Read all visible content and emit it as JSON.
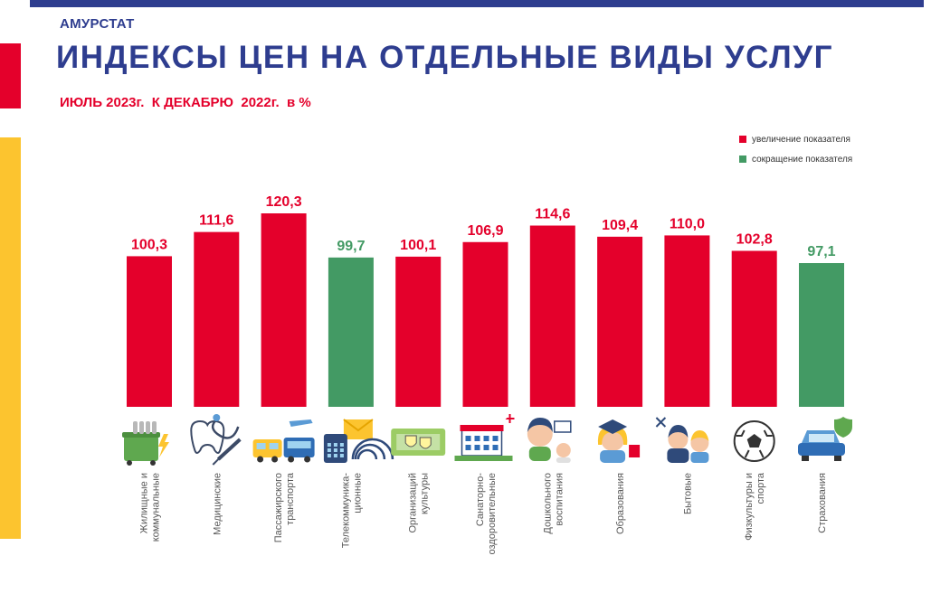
{
  "header": {
    "brand": "АМУРСТАТ",
    "title": "ИНДЕКСЫ ЦЕН НА ОТДЕЛЬНЫЕ ВИДЫ УСЛУГ",
    "subtitle": "ИЮЛЬ 2023г.  К ДЕКАБРЮ  2022г.  в %"
  },
  "legend": {
    "increase": "увеличение показателя",
    "decrease": "сокращение показателя"
  },
  "colors": {
    "increase": "#e4002b",
    "decrease": "#439a64",
    "title": "#2e3d8f"
  },
  "chart_data": {
    "type": "bar",
    "categories": [
      "Жилищные и коммунальные",
      "Медицинские",
      "Пассажирского транспорта",
      "Телекоммуника-ционные",
      "Организаций культуры",
      "Санаторно-оздоровительные",
      "Дошкольного воспитания",
      "Образования",
      "Бытовые",
      "Физкультуры и спорта",
      "Страхования"
    ],
    "category_lines": [
      [
        "Жилищные  и",
        "коммунальные"
      ],
      [
        "Медицинские"
      ],
      [
        "Пассажирского",
        "транспорта"
      ],
      [
        "Телекоммуника-",
        "ционные"
      ],
      [
        "Организаций",
        "культуры"
      ],
      [
        "Санаторно-",
        "оздоровительные"
      ],
      [
        "Дошкольного",
        "воспитания"
      ],
      [
        "Образования"
      ],
      [
        "Бытовые"
      ],
      [
        "Физкультуры  и",
        "спорта"
      ],
      [
        "Страхования"
      ]
    ],
    "values": [
      100.3,
      111.6,
      120.3,
      99.7,
      100.1,
      106.9,
      114.6,
      109.4,
      110.0,
      102.8,
      97.1
    ],
    "value_labels": [
      "100,3",
      "111,6",
      "120,3",
      "99,7",
      "100,1",
      "106,9",
      "114,6",
      "109,4",
      "110,0",
      "102,8",
      "97,1"
    ],
    "direction": [
      "increase",
      "increase",
      "increase",
      "decrease",
      "increase",
      "increase",
      "increase",
      "increase",
      "increase",
      "increase",
      "decrease"
    ],
    "icons": [
      "utilities-icon",
      "medical-icon",
      "transport-icon",
      "telecom-icon",
      "culture-icon",
      "sanatorium-icon",
      "preschool-icon",
      "education-icon",
      "household-icon",
      "sport-icon",
      "insurance-icon"
    ],
    "legend_position": "top-right",
    "grid": false
  }
}
